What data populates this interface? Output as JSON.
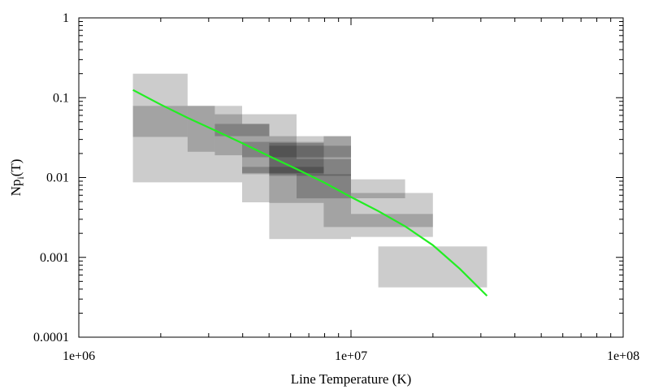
{
  "chart_data": {
    "type": "scatter",
    "title": "",
    "xlabel": "Line Temperature (K)",
    "ylabel_main": "Np",
    "ylabel_sub": "i",
    "ylabel_tail": "(T)",
    "xscale": "log",
    "yscale": "log",
    "xlim": [
      1000000,
      100000000
    ],
    "ylim": [
      0.0001,
      1
    ],
    "x_ticks": [
      {
        "value": 1000000,
        "label": "1e+06"
      },
      {
        "value": 10000000,
        "label": "1e+07"
      },
      {
        "value": 100000000,
        "label": "1e+08"
      }
    ],
    "y_ticks": [
      {
        "value": 0.0001,
        "label": "0.0001"
      },
      {
        "value": 0.001,
        "label": "0.001"
      },
      {
        "value": 0.01,
        "label": "0.01"
      },
      {
        "value": 0.1,
        "label": "0.1"
      },
      {
        "value": 1,
        "label": "1"
      }
    ],
    "grid": false,
    "legend": "none",
    "box_color": "#000000",
    "box_opacity": 0.2,
    "curve_color": "#22ee22",
    "boxes": [
      {
        "x": [
          1580000,
          2510000
        ],
        "y": [
          0.0323,
          0.2
        ]
      },
      {
        "x": [
          1580000,
          3980000
        ],
        "y": [
          0.0087,
          0.079
        ]
      },
      {
        "x": [
          2510000,
          3160000
        ],
        "y": [
          0.021,
          0.079
        ]
      },
      {
        "x": [
          3160000,
          3980000
        ],
        "y": [
          0.019,
          0.062
        ]
      },
      {
        "x": [
          3160000,
          5010000
        ],
        "y": [
          0.033,
          0.047
        ]
      },
      {
        "x": [
          3980000,
          5010000
        ],
        "y": [
          0.0049,
          0.047
        ]
      },
      {
        "x": [
          3980000,
          6310000
        ],
        "y": [
          0.011,
          0.062
        ]
      },
      {
        "x": [
          3980000,
          7940000
        ],
        "y": [
          0.0114,
          0.0136
        ]
      },
      {
        "x": [
          3980000,
          7940000
        ],
        "y": [
          0.018,
          0.028
        ]
      },
      {
        "x": [
          5010000,
          7940000
        ],
        "y": [
          0.0048,
          0.027
        ]
      },
      {
        "x": [
          5010000,
          10000000
        ],
        "y": [
          0.0017,
          0.033
        ]
      },
      {
        "x": [
          5010000,
          10000000
        ],
        "y": [
          0.0105,
          0.025
        ]
      },
      {
        "x": [
          6310000,
          10000000
        ],
        "y": [
          0.0055,
          0.017
        ]
      },
      {
        "x": [
          7940000,
          10000000
        ],
        "y": [
          0.0024,
          0.011
        ]
      },
      {
        "x": [
          7940000,
          10000000
        ],
        "y": [
          0.018,
          0.033
        ]
      },
      {
        "x": [
          10000000,
          15800000
        ],
        "y": [
          0.0055,
          0.0095
        ]
      },
      {
        "x": [
          10000000,
          20000000
        ],
        "y": [
          0.0018,
          0.0064
        ]
      },
      {
        "x": [
          10000000,
          20000000
        ],
        "y": [
          0.0024,
          0.0035
        ]
      },
      {
        "x": [
          12600000,
          31600000
        ],
        "y": [
          0.00042,
          0.00137
        ]
      }
    ],
    "curve": [
      {
        "x": 1580000,
        "y": 0.125
      },
      {
        "x": 2000000,
        "y": 0.082
      },
      {
        "x": 2510000,
        "y": 0.056
      },
      {
        "x": 3160000,
        "y": 0.039
      },
      {
        "x": 3980000,
        "y": 0.027
      },
      {
        "x": 5010000,
        "y": 0.0185
      },
      {
        "x": 6310000,
        "y": 0.0128
      },
      {
        "x": 7940000,
        "y": 0.0087
      },
      {
        "x": 10000000,
        "y": 0.0057
      },
      {
        "x": 12600000,
        "y": 0.0038
      },
      {
        "x": 15800000,
        "y": 0.00245
      },
      {
        "x": 20000000,
        "y": 0.00142
      },
      {
        "x": 25100000,
        "y": 0.00072
      },
      {
        "x": 31600000,
        "y": 0.00033
      }
    ]
  }
}
